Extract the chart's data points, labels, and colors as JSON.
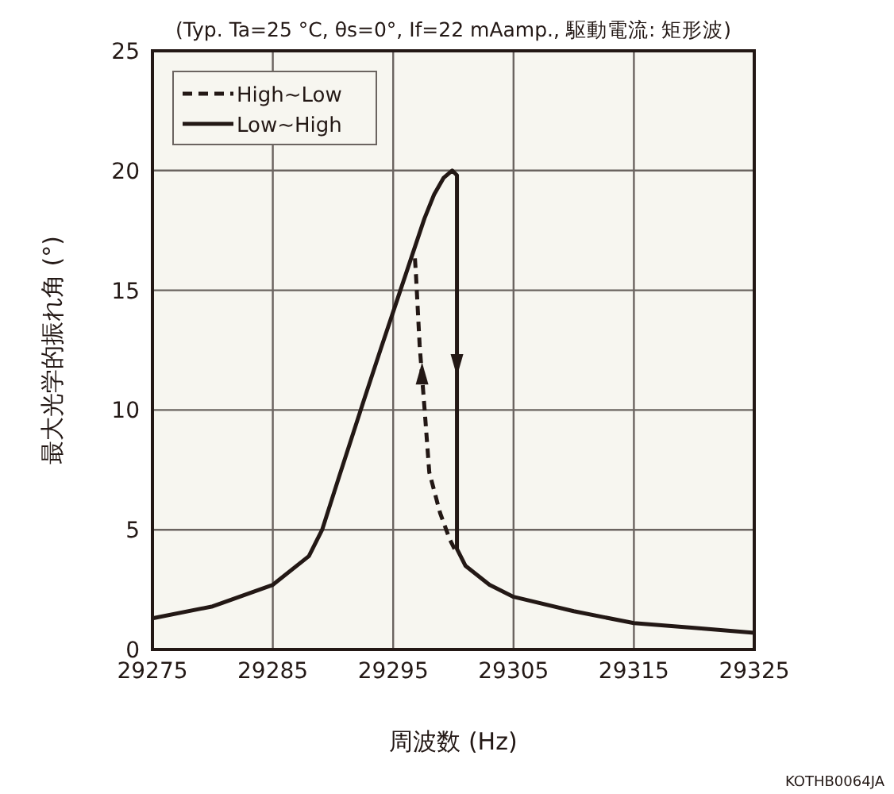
{
  "chart_data": {
    "type": "line",
    "title": "(Typ. Ta=25 °C, θs=0°, If=22 mAamp., 駆動電流: 矩形波)",
    "xlabel": "周波数 (Hz)",
    "ylabel": "最大光学的振れ角 (°)",
    "xlim": [
      29275,
      29325
    ],
    "xticks": [
      29275,
      29285,
      29295,
      29305,
      29315,
      29325
    ],
    "ylim": [
      0,
      25
    ],
    "yticks": [
      0,
      5,
      10,
      15,
      20,
      25
    ],
    "grid": true,
    "legend": "top left",
    "series": [
      {
        "name": "High∼Low",
        "color": "#231815",
        "line_style": "dashed",
        "x": [
          29300.1,
          29299.7,
          29298.9,
          29298.0,
          29297.6,
          29297.2,
          29296.9,
          29296.8
        ],
        "values": [
          4.2,
          4.6,
          5.7,
          7.4,
          10.1,
          12.7,
          15.6,
          16.4
        ]
      },
      {
        "name": "Low∼High",
        "color": "#231815",
        "line_style": "solid",
        "x": [
          29275,
          29280,
          29285,
          29288,
          29289.1,
          29290.5,
          29292.3,
          29294,
          29295.6,
          29296.6,
          29297.6,
          29298.4,
          29299.2,
          29299.9,
          29300.3,
          29300.3,
          29301,
          29303,
          29305,
          29310,
          29315,
          29320,
          29325
        ],
        "values": [
          1.3,
          1.8,
          2.7,
          3.9,
          5.0,
          7.2,
          10.0,
          12.6,
          15.0,
          16.5,
          18.0,
          19.0,
          19.7,
          20.0,
          19.8,
          4.2,
          3.5,
          2.7,
          2.2,
          1.6,
          1.1,
          0.9,
          0.7
        ]
      }
    ],
    "annotations": [
      "KOTHB0064JA"
    ]
  }
}
